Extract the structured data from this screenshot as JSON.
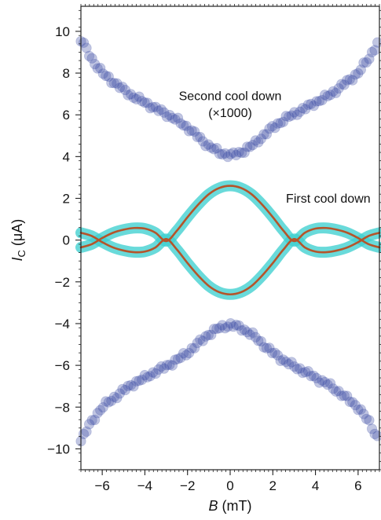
{
  "chart_data": {
    "type": "scatter",
    "xlabel": {
      "var": "B",
      "unit": " (mT)"
    },
    "ylabel": {
      "var": "I",
      "sub": "C",
      "unit": " (μA)"
    },
    "xlim": [
      -7,
      7
    ],
    "ylim": [
      -11,
      11.2
    ],
    "xticks": [
      -6,
      -4,
      -2,
      0,
      2,
      4,
      6
    ],
    "xtick_labels": [
      "−6",
      "−4",
      "−2",
      "0",
      "2",
      "4",
      "6"
    ],
    "yticks": [
      10,
      8,
      6,
      4,
      2,
      0,
      -2,
      -4,
      -6,
      -8,
      -10
    ],
    "ytick_labels": [
      "10",
      "8",
      "6",
      "4",
      "2",
      "0",
      "−2",
      "−4",
      "−6",
      "−8",
      "−10"
    ],
    "grid": false,
    "annotations": [
      {
        "text": "Second cool down",
        "x": 0,
        "y": 6.7
      },
      {
        "text": "(×1000)",
        "x": 0,
        "y": 5.9
      },
      {
        "text": "First cool down",
        "x": 4.6,
        "y": 1.8
      }
    ],
    "series": [
      {
        "kind": "scatter",
        "color": "#3f4fa6",
        "x": [
          -7,
          -6.5,
          -6,
          -5.5,
          -5,
          -4.5,
          -4,
          -3.5,
          -3,
          -2.5,
          -2,
          -1.5,
          -1,
          -0.5,
          0,
          0.5,
          1,
          1.5,
          2,
          2.5,
          3,
          3.5,
          4,
          4.5,
          5,
          5.5,
          6,
          6.5,
          7
        ],
        "y": [
          9.6,
          8.7,
          8.0,
          7.6,
          7.2,
          6.85,
          6.6,
          6.3,
          6.05,
          5.75,
          5.4,
          4.95,
          4.5,
          4.2,
          4.05,
          4.2,
          4.5,
          4.95,
          5.4,
          5.75,
          6.05,
          6.3,
          6.6,
          6.85,
          7.2,
          7.6,
          8.0,
          8.7,
          9.6
        ]
      },
      {
        "kind": "scatter",
        "color": "#3f4fa6",
        "x": [
          -7,
          -6.5,
          -6,
          -5.5,
          -5,
          -4.5,
          -4,
          -3.5,
          -3,
          -2.5,
          -2,
          -1.5,
          -1,
          -0.5,
          0,
          0.5,
          1,
          1.5,
          2,
          2.5,
          3,
          3.5,
          4,
          4.5,
          5,
          5.5,
          6,
          6.5,
          7
        ],
        "y": [
          -9.6,
          -8.7,
          -8.0,
          -7.6,
          -7.2,
          -6.85,
          -6.6,
          -6.3,
          -6.05,
          -5.75,
          -5.4,
          -4.95,
          -4.5,
          -4.2,
          -4.05,
          -4.2,
          -4.5,
          -4.95,
          -5.4,
          -5.75,
          -6.05,
          -6.3,
          -6.6,
          -6.85,
          -7.2,
          -7.6,
          -8.0,
          -8.7,
          -9.6
        ]
      },
      {
        "kind": "band-line",
        "band_color": "#3fcfcf",
        "line_color": "#b5542a",
        "x": [
          -7,
          -6.5,
          -6,
          -5.5,
          -5,
          -4.5,
          -4,
          -3.5,
          -3,
          -2.5,
          -2,
          -1.5,
          -1,
          -0.5,
          0,
          0.5,
          1,
          1.5,
          2,
          2.5,
          3,
          3.5,
          4,
          4.5,
          5,
          5.5,
          6,
          6.5,
          7
        ],
        "y": [
          -0.35,
          -0.2,
          0.1,
          0.35,
          0.5,
          0.58,
          0.55,
          0.35,
          -0.05,
          0.45,
          1.1,
          1.7,
          2.2,
          2.5,
          2.6,
          2.5,
          2.2,
          1.7,
          1.1,
          0.45,
          -0.05,
          0.35,
          0.55,
          0.58,
          0.5,
          0.35,
          0.1,
          -0.2,
          -0.35
        ]
      },
      {
        "kind": "band-line",
        "band_color": "#3fcfcf",
        "line_color": "#b5542a",
        "x": [
          -7,
          -6.5,
          -6,
          -5.5,
          -5,
          -4.5,
          -4,
          -3.5,
          -3,
          -2.5,
          -2,
          -1.5,
          -1,
          -0.5,
          0,
          0.5,
          1,
          1.5,
          2,
          2.5,
          3,
          3.5,
          4,
          4.5,
          5,
          5.5,
          6,
          6.5,
          7
        ],
        "y": [
          0.35,
          0.2,
          -0.1,
          -0.35,
          -0.5,
          -0.58,
          -0.55,
          -0.35,
          0.05,
          -0.45,
          -1.1,
          -1.7,
          -2.2,
          -2.5,
          -2.6,
          -2.5,
          -2.2,
          -1.7,
          -1.1,
          -0.45,
          0.05,
          -0.35,
          -0.55,
          -0.58,
          -0.5,
          -0.35,
          -0.1,
          0.2,
          0.35
        ]
      }
    ]
  }
}
